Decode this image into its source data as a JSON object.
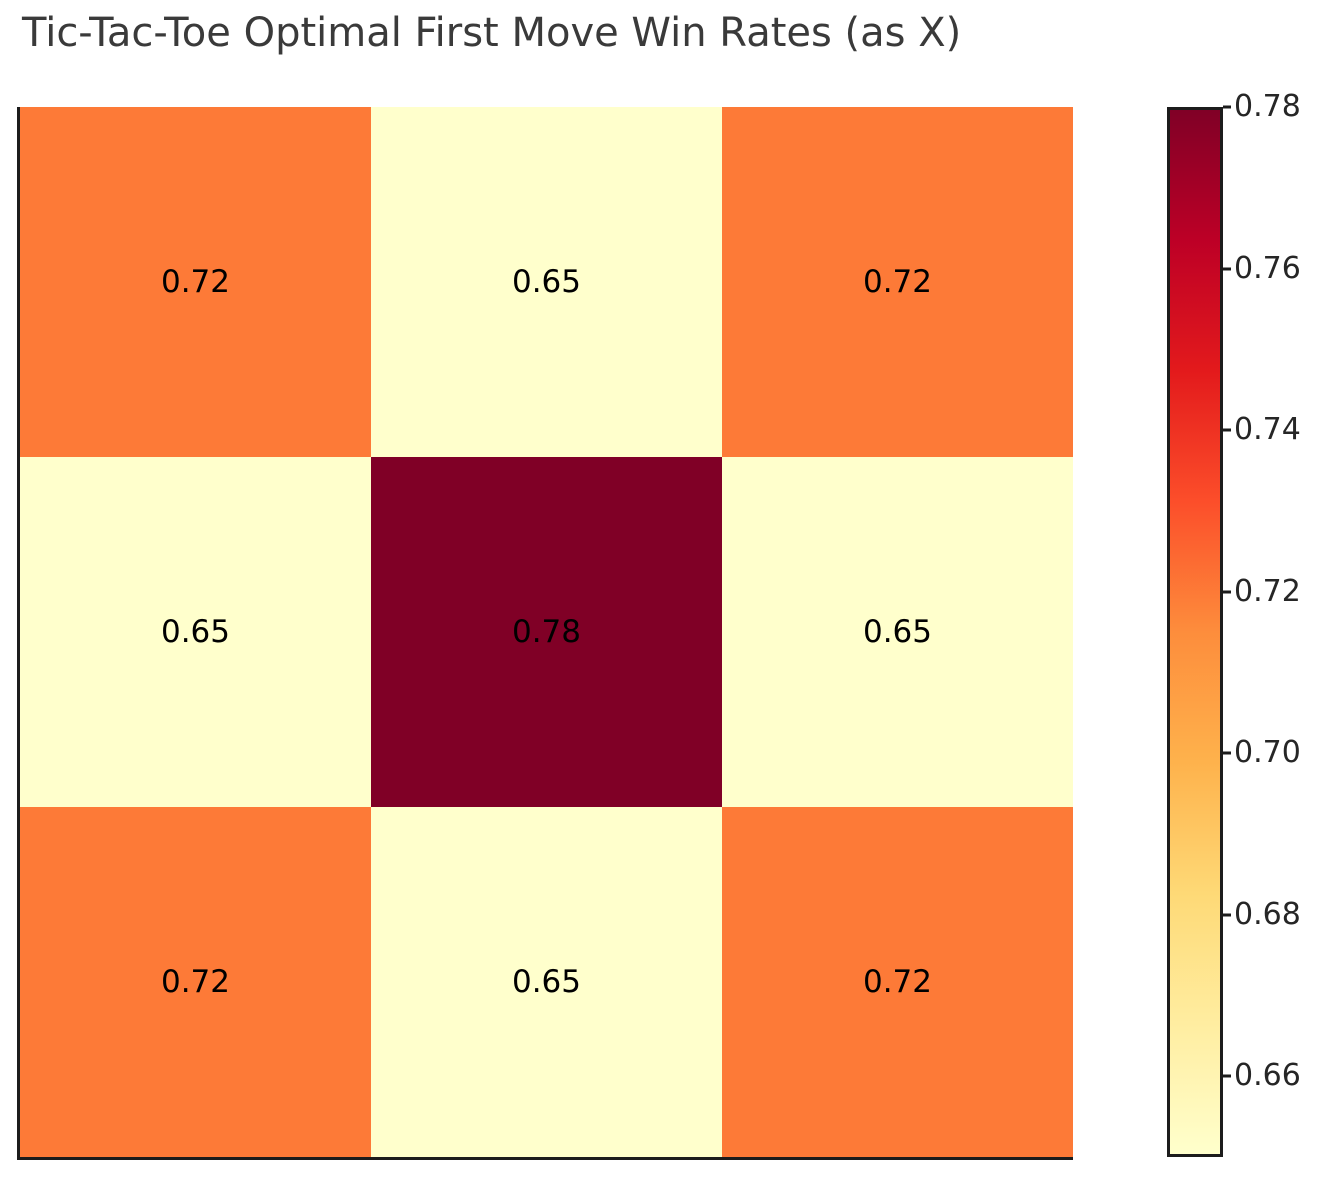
{
  "title": "Tic-Tac-Toe Optimal First Move Win Rates (as X)",
  "colors": {
    "background": "#ffffff",
    "title_text": "#3a3a3a",
    "annotation_text": "#000000",
    "spine": "#1c1c1c",
    "cell_high": "#800026",
    "cell_mid": "#FD7A37",
    "cell_low": "#FFFFCC"
  },
  "chart_data": {
    "type": "heatmap",
    "title": "Tic-Tac-Toe Optimal First Move Win Rates (as X)",
    "rows": 3,
    "cols": 3,
    "values": [
      [
        0.72,
        0.65,
        0.72
      ],
      [
        0.65,
        0.78,
        0.65
      ],
      [
        0.72,
        0.65,
        0.72
      ]
    ],
    "cell_labels": [
      [
        "0.72",
        "0.65",
        "0.72"
      ],
      [
        "0.65",
        "0.78",
        "0.65"
      ],
      [
        "0.72",
        "0.65",
        "0.72"
      ]
    ],
    "cell_colors": [
      [
        "#FD7A37",
        "#FFFFCC",
        "#FD7A37"
      ],
      [
        "#FFFFCC",
        "#800026",
        "#FFFFCC"
      ],
      [
        "#FD7A37",
        "#FFFFCC",
        "#FD7A37"
      ]
    ],
    "vmin": 0.65,
    "vmax": 0.78,
    "colormap": "YlOrRd",
    "grid": false,
    "axis_tick_labels": "none",
    "legend_position": "right-colorbar",
    "colorbar": {
      "ticks": [
        "0.78",
        "0.76",
        "0.74",
        "0.72",
        "0.70",
        "0.68",
        "0.66"
      ],
      "tick_values": [
        0.78,
        0.76,
        0.74,
        0.72,
        0.7,
        0.68,
        0.66
      ],
      "gradient_stops": [
        {
          "pos": 0.0,
          "color": "#FFFFCC"
        },
        {
          "pos": 0.125,
          "color": "#FFEDA0"
        },
        {
          "pos": 0.25,
          "color": "#FED976"
        },
        {
          "pos": 0.375,
          "color": "#FEB24C"
        },
        {
          "pos": 0.5,
          "color": "#FD8D3C"
        },
        {
          "pos": 0.625,
          "color": "#FC4E2A"
        },
        {
          "pos": 0.75,
          "color": "#E31A1C"
        },
        {
          "pos": 0.875,
          "color": "#BD0026"
        },
        {
          "pos": 1.0,
          "color": "#800026"
        }
      ]
    }
  }
}
